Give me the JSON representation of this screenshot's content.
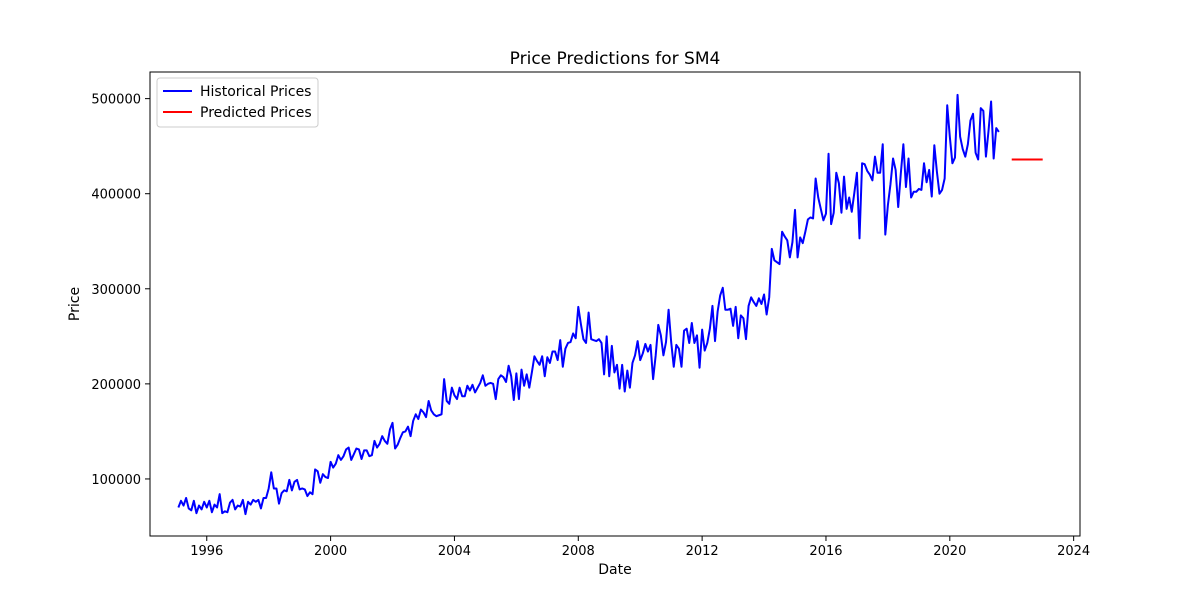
{
  "chart_data": {
    "type": "line",
    "title": "Price Predictions for SM4",
    "xlabel": "Date",
    "ylabel": "Price",
    "xlim": [
      "1994-03-01",
      "2024-03-15"
    ],
    "ylim": [
      40000,
      528000
    ],
    "xticks": [
      "1996-01-01",
      "2000-01-01",
      "2004-01-01",
      "2008-01-01",
      "2012-01-01",
      "2016-01-01",
      "2020-01-01",
      "2024-01-01"
    ],
    "xtick_labels": [
      "1996",
      "2000",
      "2004",
      "2008",
      "2012",
      "2016",
      "2020",
      "2024"
    ],
    "yticks": [
      100000,
      200000,
      300000,
      400000,
      500000
    ],
    "ytick_labels": [
      "100000",
      "200000",
      "300000",
      "400000",
      "500000"
    ],
    "grid": false,
    "legend": {
      "position": "top-left",
      "entries": [
        "Historical Prices",
        "Predicted Prices"
      ]
    },
    "series": [
      {
        "name": "Historical Prices",
        "color": "#0000ff",
        "start": "1995-02",
        "values": [
          70000,
          77000,
          72000,
          80000,
          69000,
          67000,
          77000,
          64000,
          72000,
          68000,
          76000,
          70000,
          77000,
          65000,
          73000,
          70000,
          84000,
          64000,
          66000,
          65000,
          75000,
          78000,
          68000,
          72000,
          71000,
          78000,
          63000,
          76000,
          73000,
          78000,
          76000,
          78000,
          69000,
          80000,
          80000,
          90000,
          107000,
          90000,
          90000,
          74000,
          85000,
          88000,
          87000,
          99000,
          88000,
          97000,
          99000,
          89000,
          90000,
          89000,
          82000,
          86000,
          84000,
          110000,
          108000,
          96000,
          105000,
          102000,
          101000,
          118000,
          112000,
          116000,
          125000,
          120000,
          124000,
          131000,
          133000,
          120000,
          126000,
          132000,
          131000,
          121000,
          130000,
          130000,
          124000,
          125000,
          140000,
          133000,
          137000,
          145000,
          140000,
          137000,
          152000,
          159000,
          132000,
          136000,
          143000,
          149000,
          150000,
          155000,
          145000,
          161000,
          168000,
          163000,
          173000,
          170000,
          165000,
          182000,
          172000,
          168000,
          166000,
          167000,
          168000,
          205000,
          182000,
          179000,
          196000,
          188000,
          184000,
          196000,
          187000,
          187000,
          198000,
          193000,
          199000,
          191000,
          196000,
          201000,
          209000,
          198000,
          200000,
          201000,
          200000,
          184000,
          205000,
          209000,
          207000,
          202000,
          219000,
          208000,
          183000,
          211000,
          184000,
          215000,
          198000,
          210000,
          196000,
          212000,
          229000,
          224000,
          220000,
          229000,
          208000,
          228000,
          222000,
          234000,
          234000,
          225000,
          246000,
          218000,
          237000,
          243000,
          244000,
          253000,
          248000,
          281000,
          263000,
          247000,
          243000,
          275000,
          247000,
          246000,
          245000,
          247000,
          243000,
          210000,
          250000,
          208000,
          240000,
          212000,
          220000,
          195000,
          220000,
          192000,
          214000,
          196000,
          222000,
          230000,
          245000,
          225000,
          232000,
          242000,
          234000,
          241000,
          205000,
          230000,
          262000,
          251000,
          230000,
          244000,
          278000,
          244000,
          218000,
          241000,
          237000,
          218000,
          256000,
          258000,
          243000,
          264000,
          243000,
          251000,
          217000,
          257000,
          235000,
          243000,
          258000,
          282000,
          245000,
          276000,
          293000,
          301000,
          278000,
          278000,
          279000,
          261000,
          281000,
          248000,
          272000,
          269000,
          247000,
          282000,
          291000,
          286000,
          282000,
          290000,
          284000,
          294000,
          273000,
          291000,
          342000,
          330000,
          328000,
          326000,
          360000,
          355000,
          351000,
          333000,
          349000,
          383000,
          333000,
          354000,
          348000,
          360000,
          373000,
          375000,
          374000,
          416000,
          396000,
          384000,
          372000,
          379000,
          442000,
          368000,
          380000,
          422000,
          411000,
          380000,
          418000,
          384000,
          396000,
          381000,
          401000,
          422000,
          353000,
          432000,
          431000,
          424000,
          420000,
          414000,
          439000,
          422000,
          422000,
          452000,
          357000,
          388000,
          410000,
          437000,
          425000,
          386000,
          421000,
          452000,
          407000,
          437000,
          396000,
          402000,
          402000,
          405000,
          404000,
          432000,
          412000,
          425000,
          397000,
          451000,
          423000,
          400000,
          404000,
          416000,
          493000,
          460000,
          432000,
          438000,
          504000,
          460000,
          447000,
          439000,
          452000,
          477000,
          484000,
          443000,
          436000,
          490000,
          487000,
          439000,
          466000,
          497000,
          437000,
          469000,
          465000
        ]
      },
      {
        "name": "Predicted Prices",
        "color": "#ff0000",
        "x": [
          "2022-01-01",
          "2023-01-01"
        ],
        "values": [
          436000,
          436000
        ]
      }
    ]
  }
}
